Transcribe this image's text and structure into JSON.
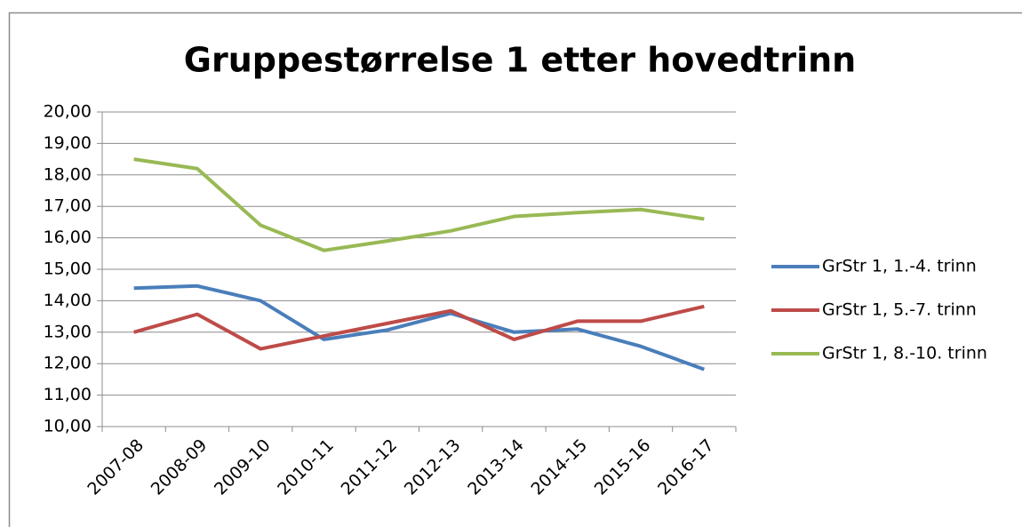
{
  "chart_data": {
    "type": "line",
    "title": "Gruppestørrelse 1 etter hovedtrinn",
    "categories": [
      "2007-08",
      "2008-09",
      "2009-10",
      "2010-11",
      "2011-12",
      "2012-13",
      "2013-14",
      "2014-15",
      "2015-16",
      "2016-17"
    ],
    "series": [
      {
        "name": "GrStr 1, 1.-4. trinn",
        "color": "#4a7ebb",
        "values": [
          14.4,
          14.47,
          14.0,
          12.77,
          13.07,
          13.6,
          13.0,
          13.1,
          12.55,
          11.82
        ]
      },
      {
        "name": "GrStr 1, 5.-7. trinn",
        "color": "#be4b48",
        "values": [
          13.0,
          13.57,
          12.47,
          12.88,
          13.28,
          13.68,
          12.77,
          13.35,
          13.35,
          13.82
        ]
      },
      {
        "name": "GrStr 1, 8.-10. trinn",
        "color": "#98b954",
        "values": [
          18.5,
          18.2,
          16.4,
          15.6,
          15.9,
          16.22,
          16.68,
          16.8,
          16.9,
          16.6
        ]
      }
    ],
    "ylim": [
      10,
      20
    ],
    "yticks": [
      {
        "value": 10,
        "label": "10,00"
      },
      {
        "value": 11,
        "label": "11,00"
      },
      {
        "value": 12,
        "label": "12,00"
      },
      {
        "value": 13,
        "label": "13,00"
      },
      {
        "value": 14,
        "label": "14,00"
      },
      {
        "value": 15,
        "label": "15,00"
      },
      {
        "value": 16,
        "label": "16,00"
      },
      {
        "value": 17,
        "label": "17,00"
      },
      {
        "value": 18,
        "label": "18,00"
      },
      {
        "value": 19,
        "label": "19,00"
      },
      {
        "value": 20,
        "label": "20,00"
      }
    ],
    "grid": true,
    "legend": "right"
  }
}
